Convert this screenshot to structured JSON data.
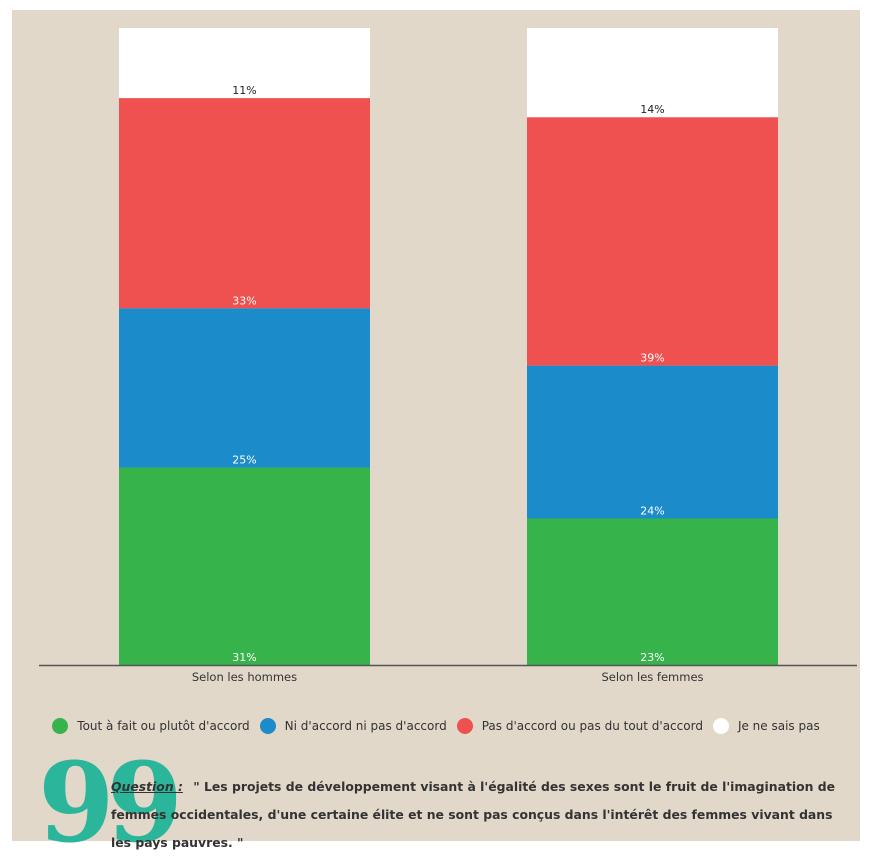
{
  "chart_data": {
    "type": "bar",
    "stacked": true,
    "orientation": "vertical",
    "categories": [
      "Selon les hommes",
      "Selon les femmes"
    ],
    "series": [
      {
        "name": "Tout à fait ou plutôt d'accord",
        "values": [
          31,
          23
        ],
        "labels": [
          "31%",
          "23%"
        ],
        "color": "#36b44b"
      },
      {
        "name": "Ni d'accord ni pas d'accord",
        "values": [
          25,
          24
        ],
        "labels": [
          "25%",
          "24%"
        ],
        "color": "#1b8bc9"
      },
      {
        "name": "Pas d'accord ou pas du tout d'accord",
        "values": [
          33,
          39
        ],
        "labels": [
          "33%",
          "39%"
        ],
        "color": "#ef5150"
      },
      {
        "name": "Je ne sais pas",
        "values": [
          11,
          14
        ],
        "labels": [
          "11%",
          "14%"
        ],
        "color": "#ffffff"
      }
    ],
    "ylim": [
      0,
      100
    ],
    "grid": false,
    "legend": "bottom"
  },
  "question": {
    "label": "Question :",
    "text": "\" Les projets de développement visant à l'égalité des sexes sont le fruit de l'imagination de femmes occidentales, d'une certaine élite et ne sont pas conçus dans l'intérêt des femmes vivant dans les pays pauvres. \""
  },
  "quote_mark": "99",
  "colors": {
    "background": "#e1d8ca",
    "axis": "#555555",
    "quote_accent": "#2bb59a"
  }
}
